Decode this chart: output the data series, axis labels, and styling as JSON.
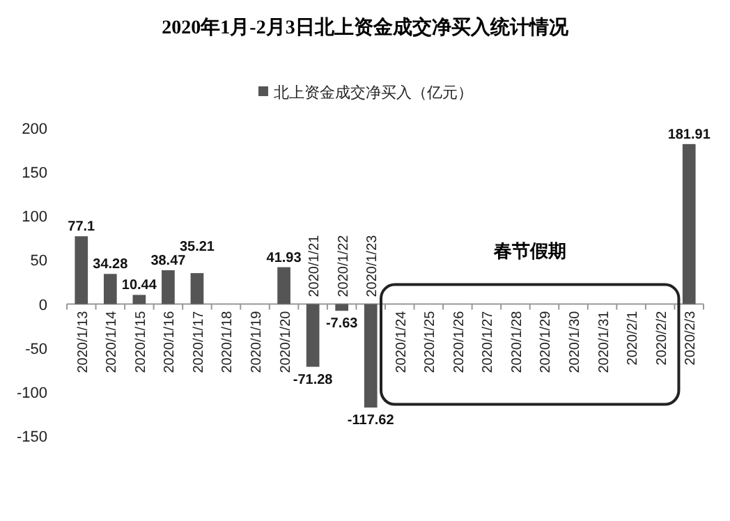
{
  "chart_data": {
    "type": "bar",
    "title": "2020年1月-2月3日北上资金成交净买入统计情况",
    "categories": [
      "2020/1/13",
      "2020/1/14",
      "2020/1/15",
      "2020/1/16",
      "2020/1/17",
      "2020/1/18",
      "2020/1/19",
      "2020/1/20",
      "2020/1/21",
      "2020/1/22",
      "2020/1/23",
      "2020/1/24",
      "2020/1/25",
      "2020/1/26",
      "2020/1/27",
      "2020/1/28",
      "2020/1/29",
      "2020/1/30",
      "2020/1/31",
      "2020/2/1",
      "2020/2/2",
      "2020/2/3"
    ],
    "series": [
      {
        "name": "北上资金成交净买入（亿元）",
        "color": "#555555",
        "values": [
          77.1,
          34.28,
          10.44,
          38.47,
          35.21,
          null,
          null,
          41.93,
          -71.28,
          -7.63,
          -117.62,
          null,
          null,
          null,
          null,
          null,
          null,
          null,
          null,
          null,
          null,
          181.91
        ]
      }
    ],
    "ylim": [
      -150,
      200
    ],
    "yticks": [
      -150,
      -100,
      -50,
      0,
      50,
      100,
      150,
      200
    ],
    "data_labels": true,
    "legend": "top",
    "grid": false,
    "annotations": [
      "春节假期"
    ]
  }
}
